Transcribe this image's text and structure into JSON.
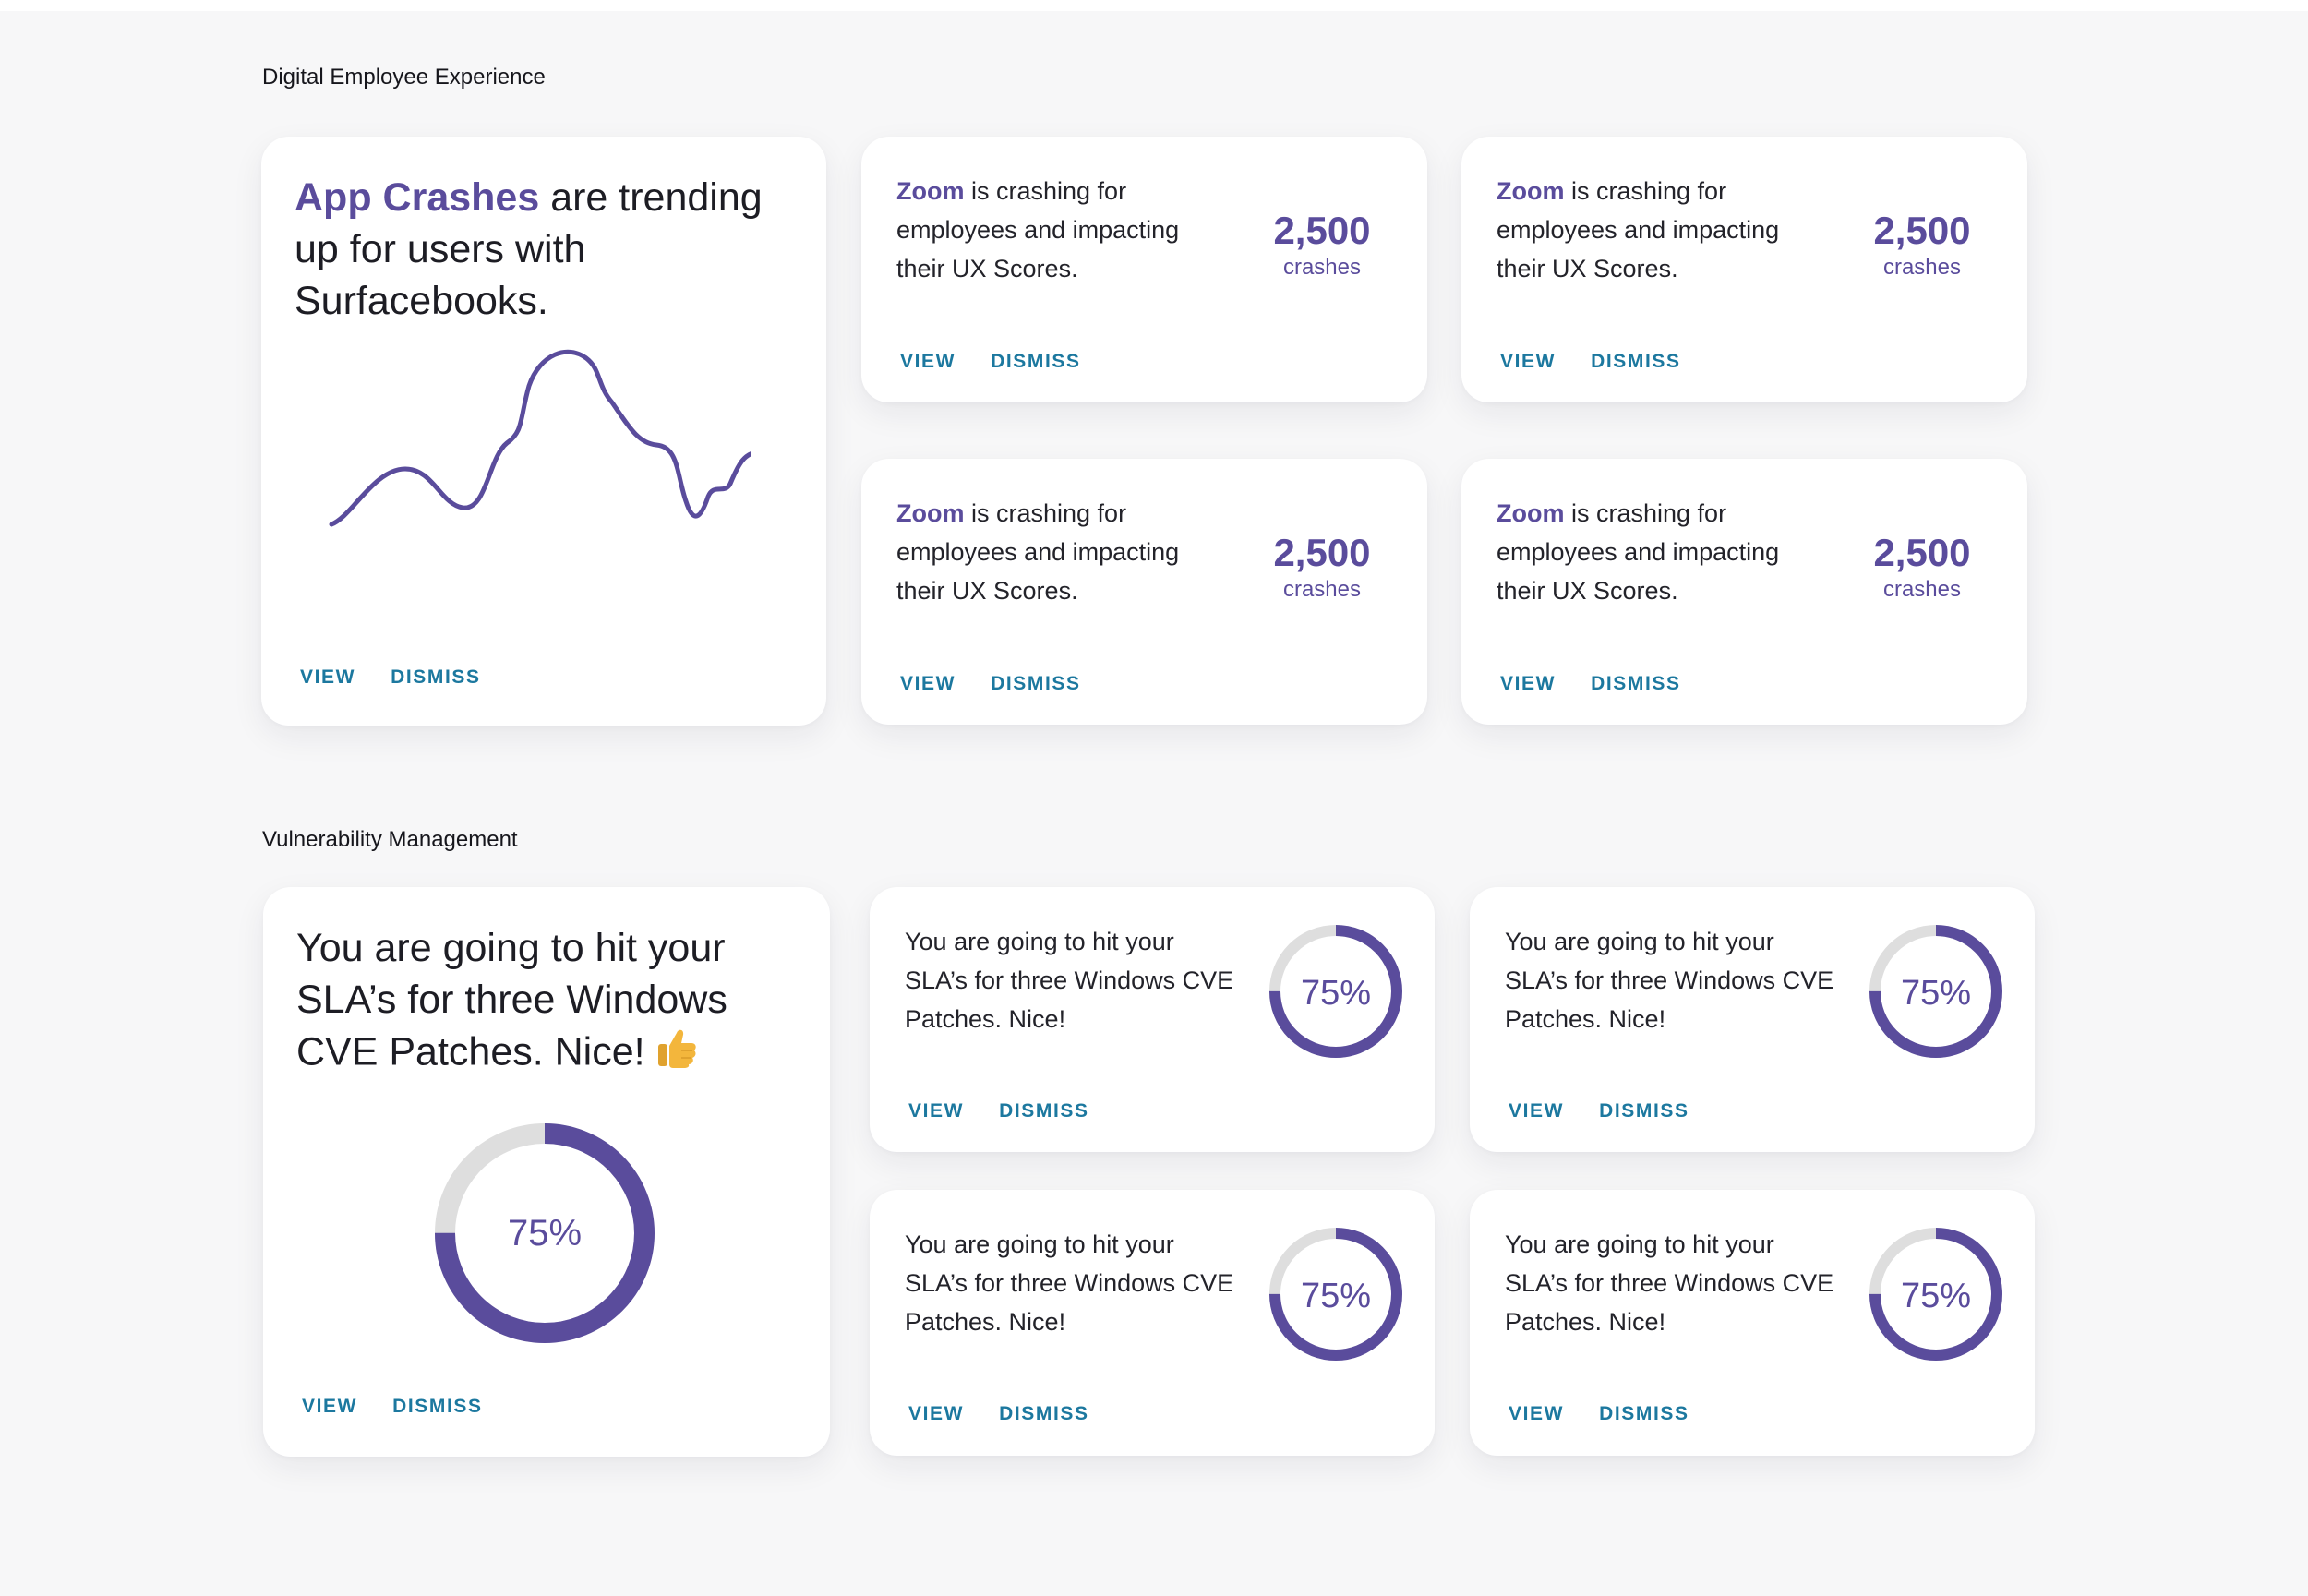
{
  "colors": {
    "accent": "#5a4c9c",
    "link": "#1c789f",
    "track": "#dedede",
    "thumb": "#f3b63c"
  },
  "sections": {
    "dex": {
      "title": "Digital Employee Experience",
      "featured": {
        "highlight": "App Crashes",
        "text": " are trending up for users with Surfacebooks.",
        "view": "VIEW",
        "dismiss": "DISMISS"
      },
      "cards": [
        {
          "app": "Zoom",
          "text": " is crashing for employees and impacting their UX Scores.",
          "value": "2,500",
          "unit": "crashes",
          "view": "VIEW",
          "dismiss": "DISMISS"
        },
        {
          "app": "Zoom",
          "text": " is crashing for employees and impacting their UX Scores.",
          "value": "2,500",
          "unit": "crashes",
          "view": "VIEW",
          "dismiss": "DISMISS"
        },
        {
          "app": "Zoom",
          "text": " is crashing for employees and impacting their UX Scores.",
          "value": "2,500",
          "unit": "crashes",
          "view": "VIEW",
          "dismiss": "DISMISS"
        },
        {
          "app": "Zoom",
          "text": " is crashing for employees and impacting their UX Scores.",
          "value": "2,500",
          "unit": "crashes",
          "view": "VIEW",
          "dismiss": "DISMISS"
        }
      ]
    },
    "vuln": {
      "title": "Vulnerability Management",
      "featured": {
        "text": "You are going to hit your SLA’s for three Windows CVE Patches. Nice!",
        "percent_label": "75%",
        "percent": 75,
        "emoji": "thumbs-up-icon",
        "view": "VIEW",
        "dismiss": "DISMISS"
      },
      "cards": [
        {
          "text": "You are going to hit your SLA’s for three Windows CVE Patches. Nice!",
          "percent_label": "75%",
          "percent": 75,
          "view": "VIEW",
          "dismiss": "DISMISS"
        },
        {
          "text": "You are going to hit your SLA’s for three Windows CVE Patches. Nice!",
          "percent_label": "75%",
          "percent": 75,
          "view": "VIEW",
          "dismiss": "DISMISS"
        },
        {
          "text": "You are going to hit your SLA’s for three Windows CVE Patches. Nice!",
          "percent_label": "75%",
          "percent": 75,
          "view": "VIEW",
          "dismiss": "DISMISS"
        },
        {
          "text": "You are going to hit your SLA’s for three Windows CVE Patches. Nice!",
          "percent_label": "75%",
          "percent": 75,
          "view": "VIEW",
          "dismiss": "DISMISS"
        }
      ]
    }
  }
}
